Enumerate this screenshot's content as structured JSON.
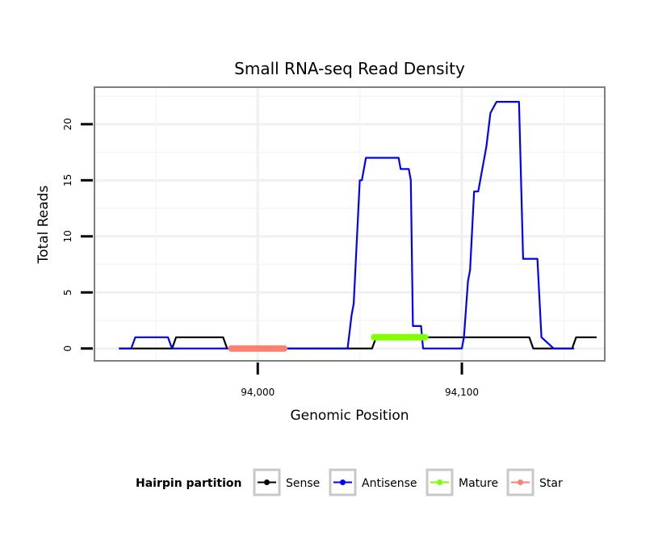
{
  "chart_data": {
    "type": "line",
    "title": "Small RNA-seq Read Density",
    "xlabel": "Genomic Position",
    "ylabel": "Total Reads",
    "xlim": [
      93920,
      94170
    ],
    "ylim": [
      -1.1,
      23.3
    ],
    "x_ticks": [
      94000,
      94100
    ],
    "x_tick_labels": [
      "94,000",
      "94,100"
    ],
    "y_ticks": [
      0,
      5,
      10,
      15,
      20
    ],
    "y_tick_labels": [
      "0",
      "5",
      "10",
      "15",
      "20"
    ],
    "grid": true,
    "legend": {
      "title": "Hairpin partition",
      "position": "bottom",
      "entries": [
        {
          "name": "Sense",
          "color": "#000000"
        },
        {
          "name": "Antisense",
          "color": "#0000ff"
        },
        {
          "name": "Mature",
          "color": "#7fff00"
        },
        {
          "name": "Star",
          "color": "#fa8072"
        }
      ]
    },
    "series": [
      {
        "name": "Sense",
        "color": "#000000",
        "x": [
          93932,
          93958,
          93960,
          93983,
          93985,
          94056,
          94058,
          94133,
          94135,
          94154,
          94156,
          94166
        ],
        "y": [
          0,
          0,
          1,
          1,
          0,
          0,
          1,
          1,
          0,
          0,
          1,
          1
        ]
      },
      {
        "name": "Antisense",
        "color": "#0000ff",
        "x": [
          93932,
          93938,
          93940,
          93956,
          93958,
          93969,
          94044,
          94046,
          94047,
          94050,
          94051,
          94053,
          94055,
          94069,
          94070,
          94074,
          94075,
          94076,
          94080,
          94081,
          94082,
          94100,
          94101,
          94103,
          94104,
          94106,
          94108,
          94112,
          94114,
          94117,
          94120,
          94128,
          94130,
          94137,
          94139,
          94145,
          94155
        ],
        "y": [
          0,
          0,
          1,
          1,
          0,
          0,
          0,
          3,
          4,
          15,
          15,
          17,
          17,
          17,
          16,
          16,
          15,
          2,
          2,
          0,
          0,
          0,
          1,
          6,
          7,
          14,
          14,
          18,
          21,
          22,
          22,
          22,
          8,
          8,
          1,
          0,
          0
        ]
      },
      {
        "name": "Mature",
        "color": "#7fff00",
        "x": [
          94057,
          94082
        ],
        "y": [
          1,
          1
        ]
      },
      {
        "name": "Star",
        "color": "#fa8072",
        "x": [
          93987,
          94013
        ],
        "y": [
          0,
          0
        ]
      }
    ]
  }
}
